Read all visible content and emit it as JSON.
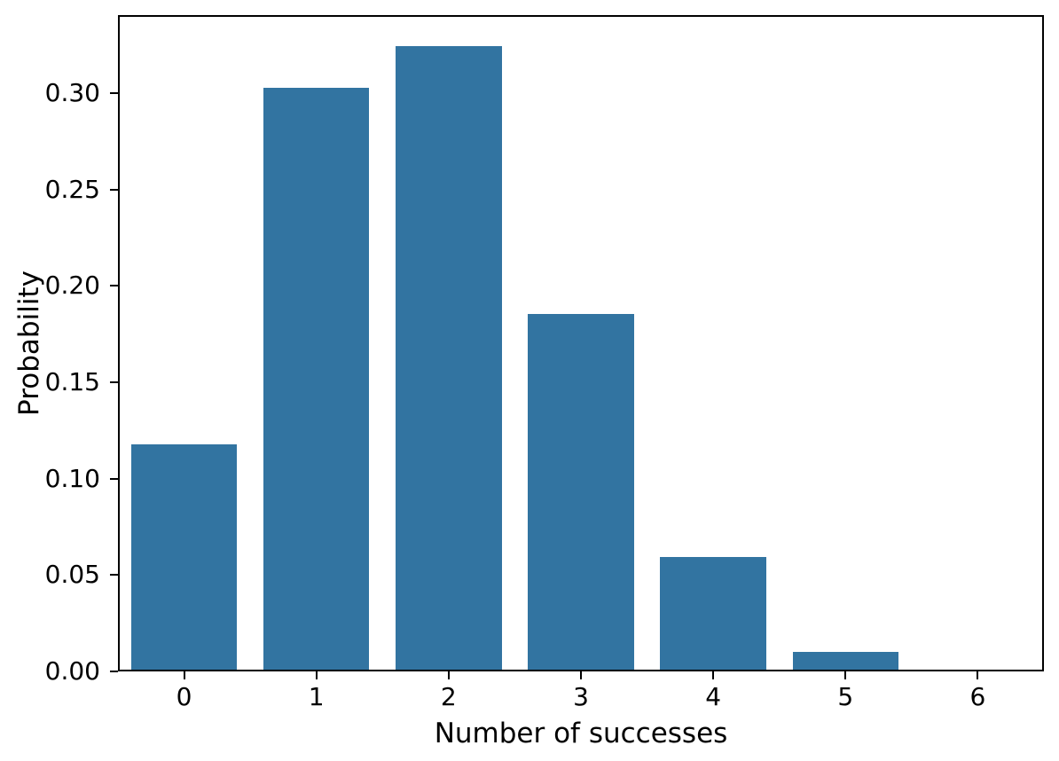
{
  "chart_data": {
    "type": "bar",
    "xlabel": "Number of successes",
    "ylabel": "Probability",
    "categories": [
      "0",
      "1",
      "2",
      "3",
      "4",
      "5",
      "6"
    ],
    "values": [
      0.1176,
      0.3025,
      0.3241,
      0.1852,
      0.0595,
      0.0102,
      0.0007
    ],
    "yticks": [
      "0.00",
      "0.05",
      "0.10",
      "0.15",
      "0.20",
      "0.25",
      "0.30"
    ],
    "ylim": [
      0,
      0.3404
    ],
    "bar_width_fraction": 0.8,
    "grid": false,
    "legend_position": "none",
    "colors": {
      "bar": "#3274a1",
      "text": "#000000",
      "spine": "#000000",
      "background": "#ffffff"
    }
  }
}
